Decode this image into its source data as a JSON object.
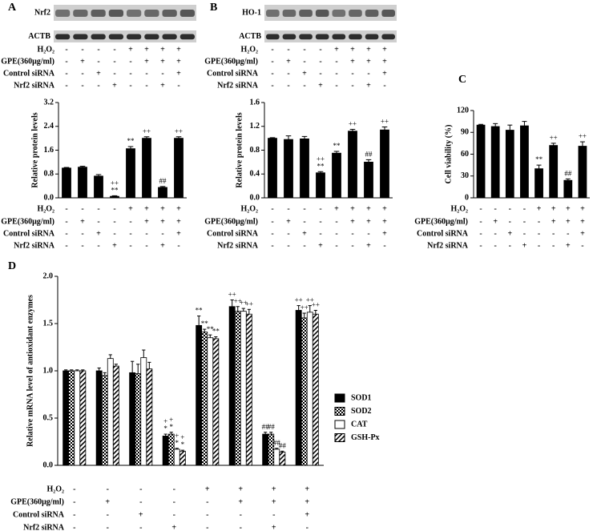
{
  "treatments": [
    {
      "label": "H₂O₂",
      "signs": [
        "-",
        "-",
        "-",
        "-",
        "+",
        "+",
        "+",
        "+"
      ]
    },
    {
      "label": "GPE(360μg/ml)",
      "signs": [
        "-",
        "+",
        "-",
        "-",
        "-",
        "+",
        "+",
        "+"
      ]
    },
    {
      "label": "Control siRNA",
      "signs": [
        "-",
        "-",
        "+",
        "-",
        "-",
        "-",
        "-",
        "+"
      ]
    },
    {
      "label": "Nrf2 siRNA",
      "signs": [
        "-",
        "-",
        "-",
        "+",
        "-",
        "-",
        "+",
        "-"
      ]
    }
  ],
  "chart_data": [
    {
      "type": "bar",
      "panel": "A",
      "blot_labels": [
        "Nrf2",
        "ACTB"
      ],
      "ylabel": "Relative protein levels",
      "ylim": [
        0,
        3.2
      ],
      "yticks": [
        {
          "value": 0,
          "label": "0.0"
        },
        0.8,
        1.6,
        2.4,
        3.2
      ],
      "color": "#000000",
      "values": [
        1.0,
        1.03,
        0.73,
        0.05,
        1.65,
        2.0,
        0.35,
        2.0
      ],
      "errors": [
        0.02,
        0.03,
        0.05,
        0.02,
        0.07,
        0.05,
        0.03,
        0.05
      ],
      "annotations": [
        null,
        null,
        null,
        [
          "**",
          "++"
        ],
        [
          "**"
        ],
        [
          "++"
        ],
        [
          "##"
        ],
        [
          "++"
        ]
      ]
    },
    {
      "type": "bar",
      "panel": "B",
      "blot_labels": [
        "HO-1",
        "ACTB"
      ],
      "ylabel": "Relative protein levels",
      "ylim": [
        0,
        1.6
      ],
      "yticks": [
        {
          "value": 0,
          "label": "0.0"
        },
        0.4,
        0.8,
        1.2,
        1.6
      ],
      "color": "#000000",
      "values": [
        1.0,
        0.98,
        0.99,
        0.42,
        0.75,
        1.12,
        0.6,
        1.14
      ],
      "errors": [
        0.01,
        0.06,
        0.04,
        0.02,
        0.03,
        0.03,
        0.04,
        0.05
      ],
      "annotations": [
        null,
        null,
        null,
        [
          "**",
          "++"
        ],
        [
          "**"
        ],
        [
          "++"
        ],
        [
          "##"
        ],
        [
          "++"
        ]
      ]
    },
    {
      "type": "bar",
      "panel": "C",
      "ylabel": "Cell viability (%)",
      "ylim": [
        0,
        120
      ],
      "yticks": [
        0,
        30,
        60,
        90,
        120
      ],
      "color": "#000000",
      "values": [
        100,
        98,
        93,
        99,
        40,
        72,
        24,
        71
      ],
      "errors": [
        1,
        4,
        7,
        6,
        5,
        3,
        2,
        6
      ],
      "annotations": [
        null,
        null,
        null,
        null,
        [
          "**"
        ],
        [
          "++"
        ],
        [
          "##"
        ],
        [
          "++"
        ]
      ]
    },
    {
      "type": "grouped-bar",
      "panel": "D",
      "ylabel": "Relative mRNA level of antioxidant enzymes",
      "ylim": [
        0,
        2.0
      ],
      "yticks": [
        {
          "value": 0,
          "label": "0.0"
        },
        0.5,
        {
          "value": 1,
          "label": "1.0"
        },
        1.5,
        {
          "value": 2,
          "label": "2.0"
        }
      ],
      "series": [
        {
          "name": "SOD1",
          "color": "#000000",
          "pattern": "solid",
          "values": [
            1.0,
            1.0,
            0.98,
            0.31,
            1.48,
            1.68,
            0.33,
            1.64
          ],
          "errors": [
            0.01,
            0.03,
            0.12,
            0.02,
            0.1,
            0.07,
            0.02,
            0.05
          ],
          "annotations": [
            null,
            null,
            null,
            [
              "*",
              "+"
            ],
            [
              "**"
            ],
            [
              "++"
            ],
            [
              "##"
            ],
            [
              "++"
            ]
          ]
        },
        {
          "name": "SOD2",
          "color": "#000000",
          "pattern": "checker",
          "values": [
            1.0,
            0.95,
            0.97,
            0.33,
            1.41,
            1.63,
            0.33,
            1.56
          ],
          "errors": [
            0.01,
            0.03,
            0.1,
            0.02,
            0.03,
            0.05,
            0.02,
            0.05
          ],
          "annotations": [
            null,
            null,
            null,
            [
              "*",
              "+"
            ],
            [
              "**"
            ],
            [
              "++"
            ],
            [
              "##"
            ],
            [
              "++"
            ]
          ]
        },
        {
          "name": "CAT",
          "color": "#000000",
          "pattern": "none",
          "values": [
            1.0,
            1.13,
            1.14,
            0.17,
            1.35,
            1.63,
            0.17,
            1.62
          ],
          "errors": [
            0.01,
            0.04,
            0.08,
            0.01,
            0.03,
            0.03,
            0.01,
            0.07
          ],
          "annotations": [
            null,
            null,
            null,
            [
              "*",
              "+"
            ],
            [
              "**"
            ],
            [
              "++"
            ],
            [
              "##"
            ],
            [
              "++"
            ]
          ]
        },
        {
          "name": "GSH-Px",
          "color": "#000000",
          "pattern": "hatch",
          "values": [
            1.0,
            1.05,
            1.02,
            0.15,
            1.34,
            1.6,
            0.14,
            1.6
          ],
          "errors": [
            0.01,
            0.02,
            0.07,
            0.01,
            0.02,
            0.05,
            0.01,
            0.04
          ],
          "annotations": [
            null,
            null,
            null,
            [
              "*",
              "+"
            ],
            [
              "**"
            ],
            [
              "++"
            ],
            [
              "##"
            ],
            [
              "++"
            ]
          ]
        }
      ]
    }
  ]
}
